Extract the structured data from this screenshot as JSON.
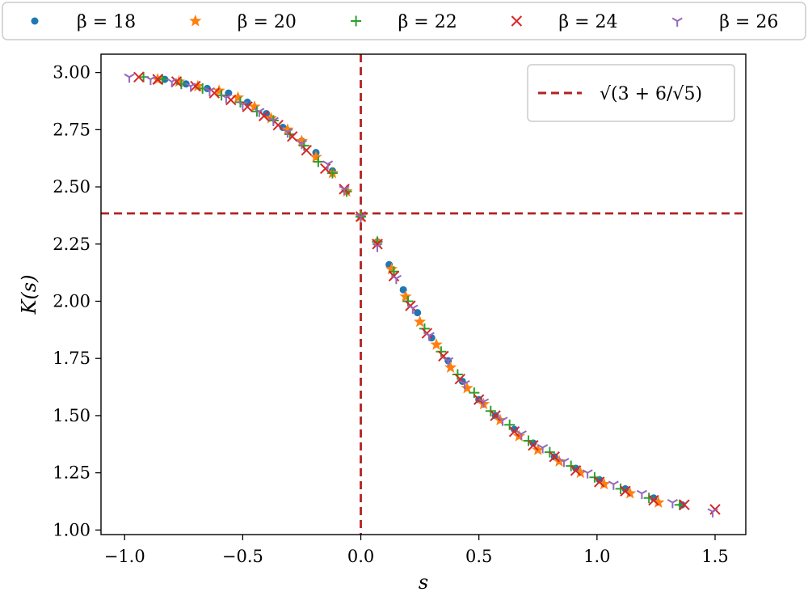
{
  "chart_data": {
    "type": "scatter",
    "xlabel": "s",
    "ylabel": "K(s)",
    "xlim": [
      -1.1,
      1.63
    ],
    "ylim": [
      0.98,
      3.08
    ],
    "xticks": [
      -1.0,
      -0.5,
      0.0,
      0.5,
      1.0,
      1.5
    ],
    "xtick_labels": [
      "−1.0",
      "−0.5",
      "0.0",
      "0.5",
      "1.0",
      "1.5"
    ],
    "yticks": [
      1.0,
      1.25,
      1.5,
      1.75,
      2.0,
      2.25,
      2.5,
      2.75,
      3.0
    ],
    "ytick_labels": [
      "1.00",
      "1.25",
      "1.50",
      "1.75",
      "2.00",
      "2.25",
      "2.50",
      "2.75",
      "3.00"
    ],
    "legend_position": "top-outside",
    "grid": false,
    "series": [
      {
        "name": "β = 18",
        "marker": "circle",
        "color": "#1f77b4",
        "x": [
          -0.83,
          -0.74,
          -0.65,
          -0.56,
          -0.48,
          -0.4,
          -0.33,
          -0.25,
          -0.19,
          -0.12,
          -0.06,
          0.0,
          0.07,
          0.12,
          0.18,
          0.24,
          0.3,
          0.37,
          0.43,
          0.5,
          0.57,
          0.65,
          0.73,
          0.82,
          0.91,
          1.01,
          1.12,
          1.24,
          1.36
        ],
        "y": [
          2.97,
          2.95,
          2.93,
          2.91,
          2.87,
          2.82,
          2.76,
          2.7,
          2.65,
          2.57,
          2.48,
          2.37,
          2.26,
          2.16,
          2.05,
          1.95,
          1.84,
          1.74,
          1.65,
          1.57,
          1.5,
          1.44,
          1.38,
          1.32,
          1.27,
          1.22,
          1.18,
          1.14,
          1.11
        ]
      },
      {
        "name": "β = 20",
        "marker": "star",
        "color": "#ff7f0e",
        "x": [
          -0.86,
          -0.77,
          -0.69,
          -0.6,
          -0.52,
          -0.45,
          -0.38,
          -0.31,
          -0.25,
          -0.19,
          -0.12,
          -0.06,
          0.0,
          0.07,
          0.13,
          0.19,
          0.25,
          0.32,
          0.38,
          0.45,
          0.52,
          0.59,
          0.67,
          0.75,
          0.84,
          0.93,
          1.03,
          1.14,
          1.26
        ],
        "y": [
          2.97,
          2.96,
          2.94,
          2.92,
          2.89,
          2.85,
          2.8,
          2.75,
          2.7,
          2.63,
          2.56,
          2.48,
          2.37,
          2.26,
          2.14,
          2.02,
          1.91,
          1.81,
          1.71,
          1.62,
          1.55,
          1.48,
          1.41,
          1.35,
          1.3,
          1.25,
          1.2,
          1.16,
          1.12
        ]
      },
      {
        "name": "β = 22",
        "marker": "plus",
        "color": "#2ca02c",
        "x": [
          -0.92,
          -0.84,
          -0.76,
          -0.67,
          -0.59,
          -0.51,
          -0.44,
          -0.37,
          -0.3,
          -0.24,
          -0.18,
          -0.12,
          -0.06,
          0.0,
          0.07,
          0.14,
          0.2,
          0.27,
          0.34,
          0.41,
          0.48,
          0.55,
          0.63,
          0.71,
          0.8,
          0.89,
          0.99,
          1.1,
          1.22,
          1.35
        ],
        "y": [
          2.98,
          2.97,
          2.95,
          2.93,
          2.9,
          2.87,
          2.83,
          2.79,
          2.73,
          2.68,
          2.61,
          2.56,
          2.48,
          2.37,
          2.26,
          2.13,
          2.0,
          1.88,
          1.78,
          1.68,
          1.6,
          1.52,
          1.46,
          1.39,
          1.34,
          1.28,
          1.23,
          1.18,
          1.14,
          1.11
        ]
      },
      {
        "name": "β = 24",
        "marker": "x",
        "color": "#d62728",
        "x": [
          -0.94,
          -0.86,
          -0.78,
          -0.7,
          -0.62,
          -0.55,
          -0.48,
          -0.41,
          -0.35,
          -0.29,
          -0.23,
          -0.15,
          -0.07,
          0.0,
          0.07,
          0.14,
          0.21,
          0.28,
          0.35,
          0.42,
          0.5,
          0.57,
          0.65,
          0.73,
          0.82,
          0.91,
          1.01,
          1.12,
          1.24,
          1.37,
          1.5
        ],
        "y": [
          2.98,
          2.97,
          2.96,
          2.94,
          2.91,
          2.88,
          2.85,
          2.81,
          2.77,
          2.72,
          2.66,
          2.58,
          2.49,
          2.37,
          2.25,
          2.11,
          1.98,
          1.86,
          1.76,
          1.66,
          1.57,
          1.5,
          1.43,
          1.37,
          1.32,
          1.26,
          1.21,
          1.17,
          1.13,
          1.11,
          1.09
        ]
      },
      {
        "name": "β = 26",
        "marker": "tri_down",
        "color": "#9467bd",
        "x": [
          -0.98,
          -0.89,
          -0.8,
          -0.72,
          -0.64,
          -0.57,
          -0.5,
          -0.43,
          -0.37,
          -0.31,
          -0.25,
          -0.14,
          -0.07,
          0.0,
          0.07,
          0.15,
          0.22,
          0.29,
          0.37,
          0.44,
          0.52,
          0.6,
          0.68,
          0.77,
          0.86,
          0.96,
          1.07,
          1.19,
          1.32,
          1.49
        ],
        "y": [
          2.98,
          2.97,
          2.96,
          2.94,
          2.92,
          2.89,
          2.86,
          2.83,
          2.79,
          2.74,
          2.69,
          2.6,
          2.49,
          2.37,
          2.24,
          2.1,
          1.97,
          1.85,
          1.74,
          1.64,
          1.56,
          1.48,
          1.42,
          1.36,
          1.3,
          1.25,
          1.2,
          1.16,
          1.12,
          1.08
        ]
      }
    ],
    "reference_lines": {
      "vertical_x": 0.0,
      "horizontal_y": 2.384,
      "color": "#b22222",
      "legend_label": "√(3 + 6/√5)"
    }
  }
}
